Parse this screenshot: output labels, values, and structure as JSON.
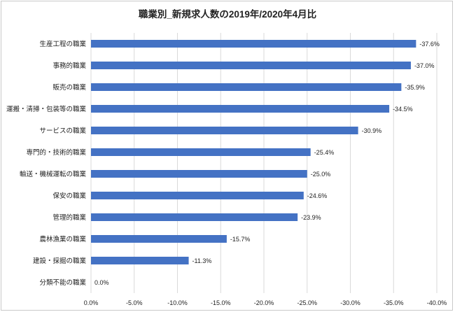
{
  "chart_data": {
    "type": "bar",
    "orientation": "horizontal",
    "title": "職業別_新規求人数の2019年/2020年4月比",
    "categories": [
      "生産工程の職業",
      "事務的職業",
      "販売の職業",
      "運搬・清掃・包装等の職業",
      "サービスの職業",
      "専門的・技術的職業",
      "輸送・機械運転の職業",
      "保安の職業",
      "管理的職業",
      "農林漁業の職業",
      "建設・採掘の職業",
      "分類不能の職業"
    ],
    "values": [
      -37.6,
      -37.0,
      -35.9,
      -34.5,
      -30.9,
      -25.4,
      -25.0,
      -24.6,
      -23.9,
      -15.7,
      -11.3,
      0.0
    ],
    "value_labels": [
      "-37.6%",
      "-37.0%",
      "-35.9%",
      "-34.5%",
      "-30.9%",
      "-25.4%",
      "-25.0%",
      "-24.6%",
      "-23.9%",
      "-15.7%",
      "-11.3%",
      "0.0%"
    ],
    "xlim": [
      0,
      -40
    ],
    "xaxis_reversed": true,
    "x_ticks": [
      0,
      -5,
      -10,
      -15,
      -20,
      -25,
      -30,
      -35,
      -40
    ],
    "x_tick_labels": [
      "0.0%",
      "-5.0%",
      "-10.0%",
      "-15.0%",
      "-20.0%",
      "-25.0%",
      "-30.0%",
      "-35.0%",
      "-40.0%"
    ],
    "grid": "vertical",
    "bar_color": "#4472c4",
    "grid_color": "#d9d9d9"
  }
}
